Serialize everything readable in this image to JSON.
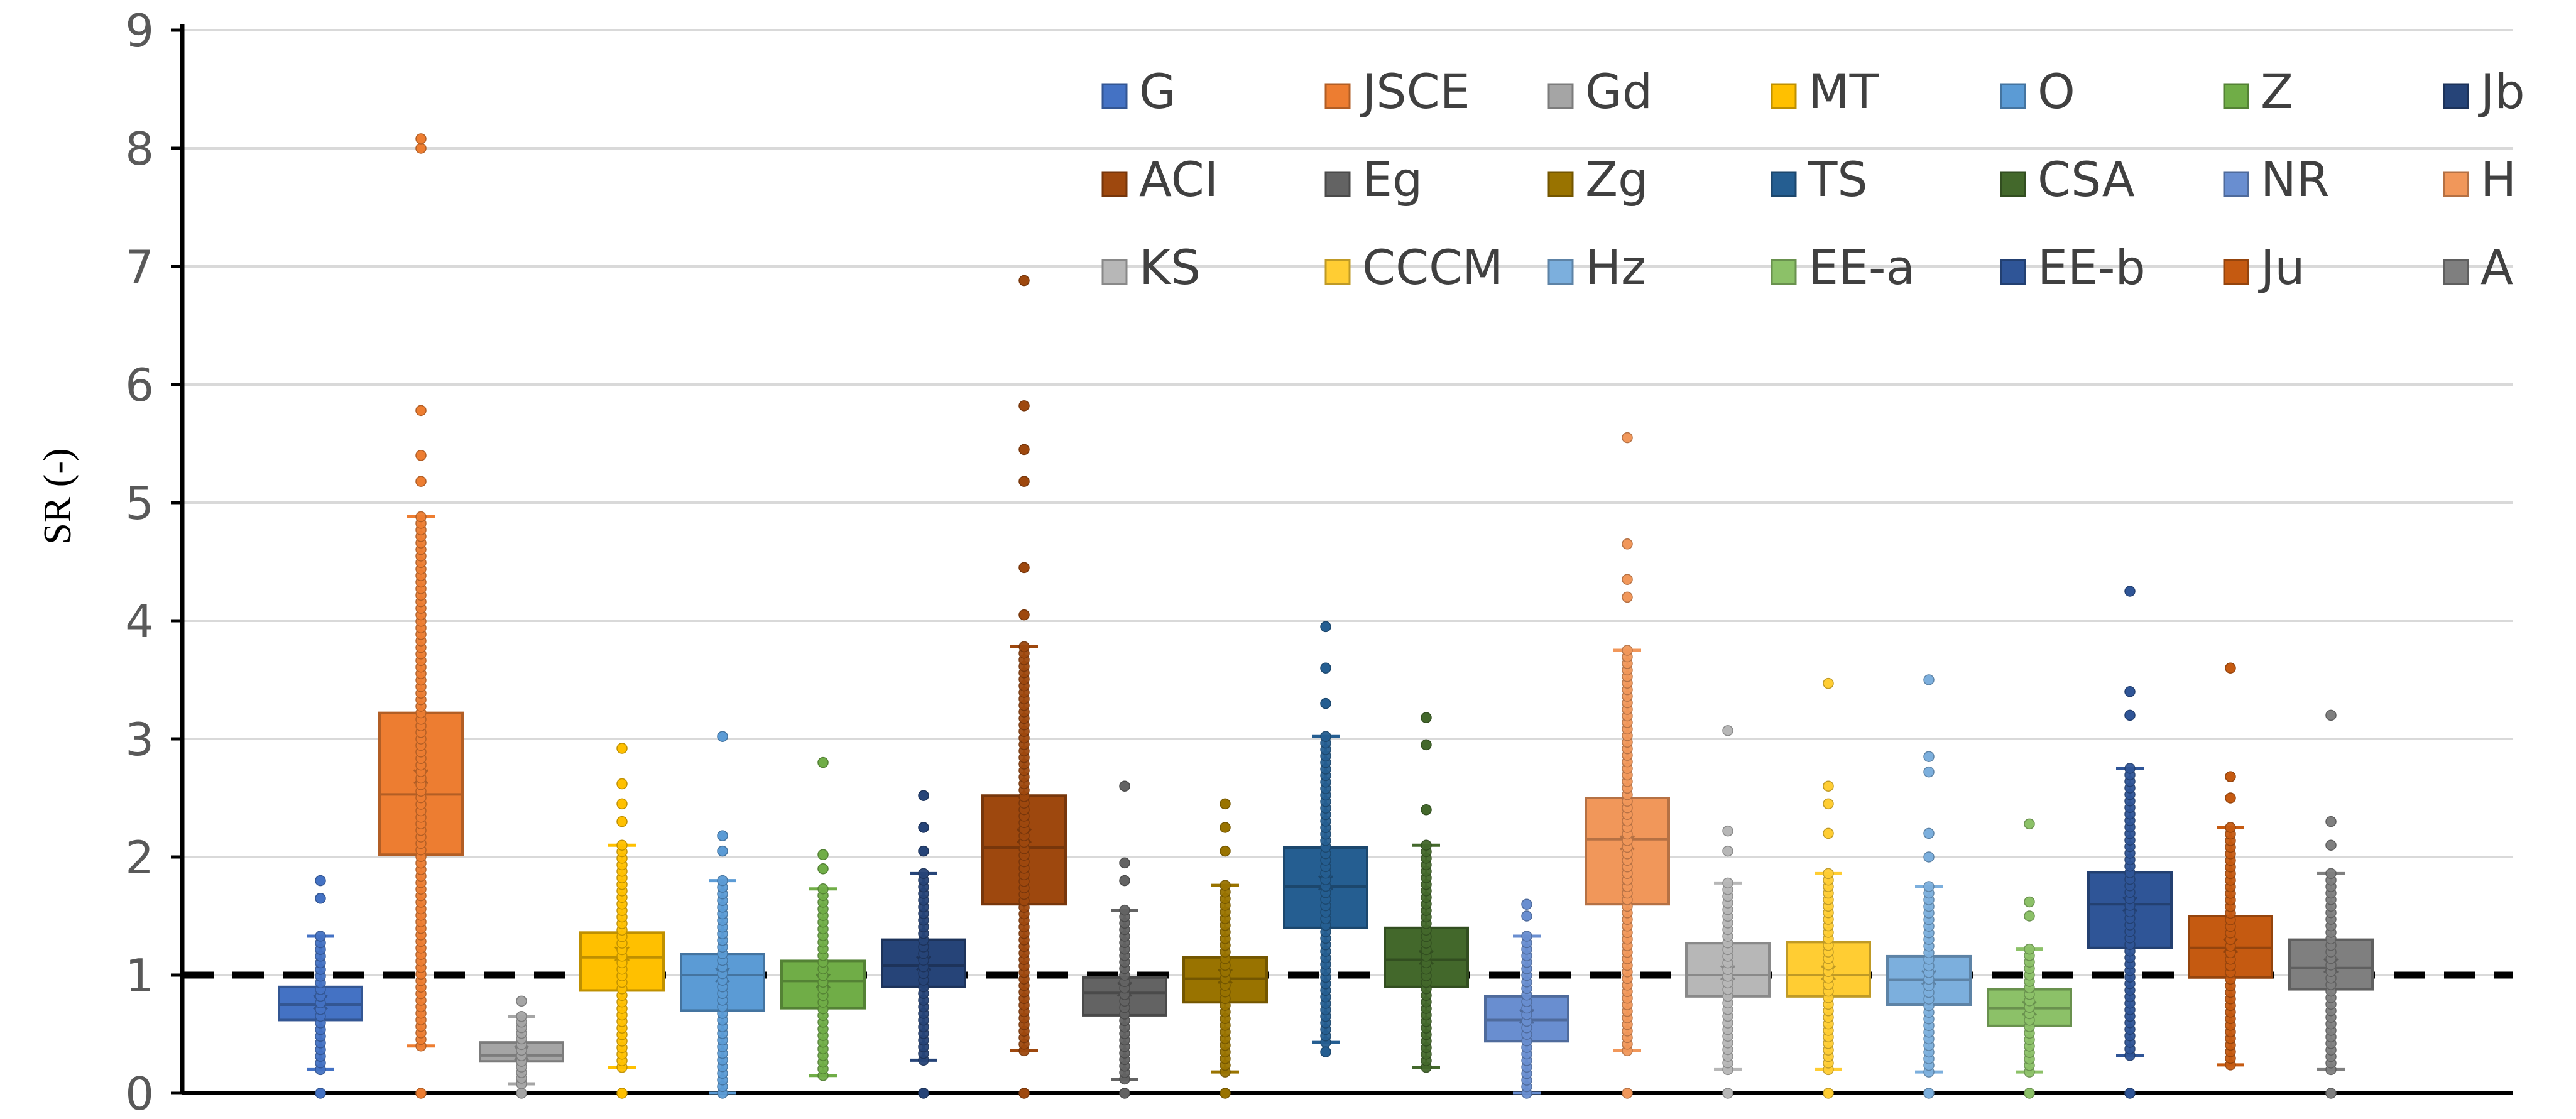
{
  "chart_data": {
    "type": "box",
    "title": "",
    "xlabel": "",
    "ylabel": "SR (-)",
    "ylim": [
      0,
      9
    ],
    "yticks": [
      "0",
      "1",
      "2",
      "3",
      "4",
      "5",
      "6",
      "7",
      "8",
      "9"
    ],
    "grid": true,
    "reference_line": 1,
    "legend_position": "top-right",
    "series": [
      {
        "name": "G",
        "color": "#4472C4",
        "min": 0.2,
        "q1": 0.62,
        "median": 0.75,
        "q3": 0.9,
        "max": 1.33,
        "mean": 0.77,
        "outliers": [
          1.65,
          1.8,
          0.0
        ]
      },
      {
        "name": "JSCE",
        "color": "#ED7D31",
        "min": 0.4,
        "q1": 2.02,
        "median": 2.53,
        "q3": 3.22,
        "max": 4.88,
        "mean": 2.68,
        "outliers": [
          5.18,
          5.4,
          5.78,
          8.0,
          8.08,
          0.0
        ]
      },
      {
        "name": "Gd",
        "color": "#A5A5A5",
        "min": 0.08,
        "q1": 0.27,
        "median": 0.32,
        "q3": 0.43,
        "max": 0.65,
        "mean": 0.34,
        "outliers": [
          0.78,
          0.0
        ]
      },
      {
        "name": "MT",
        "color": "#FFC000",
        "min": 0.22,
        "q1": 0.87,
        "median": 1.15,
        "q3": 1.36,
        "max": 2.1,
        "mean": 1.18,
        "outliers": [
          2.3,
          2.45,
          2.62,
          2.92,
          0.0
        ]
      },
      {
        "name": "O",
        "color": "#5B9BD5",
        "min": 0.0,
        "q1": 0.7,
        "median": 1.0,
        "q3": 1.18,
        "max": 1.8,
        "mean": 1.0,
        "outliers": [
          2.05,
          2.18,
          3.02
        ]
      },
      {
        "name": "Z",
        "color": "#70AD47",
        "min": 0.15,
        "q1": 0.72,
        "median": 0.95,
        "q3": 1.12,
        "max": 1.73,
        "mean": 0.95,
        "outliers": [
          1.9,
          2.02,
          2.8
        ]
      },
      {
        "name": "Jb",
        "color": "#264478",
        "min": 0.28,
        "q1": 0.9,
        "median": 1.08,
        "q3": 1.3,
        "max": 1.86,
        "mean": 1.1,
        "outliers": [
          2.05,
          2.25,
          2.52,
          0.0
        ]
      },
      {
        "name": "ACI",
        "color": "#9E480E",
        "min": 0.36,
        "q1": 1.6,
        "median": 2.08,
        "q3": 2.52,
        "max": 3.78,
        "mean": 2.18,
        "outliers": [
          4.05,
          4.45,
          5.18,
          5.45,
          5.82,
          6.88,
          0.0
        ]
      },
      {
        "name": "Eg",
        "color": "#636363",
        "min": 0.12,
        "q1": 0.66,
        "median": 0.85,
        "q3": 0.98,
        "max": 1.55,
        "mean": 0.88,
        "outliers": [
          1.8,
          1.95,
          2.6,
          0.0
        ]
      },
      {
        "name": "Zg",
        "color": "#997300",
        "min": 0.18,
        "q1": 0.77,
        "median": 0.97,
        "q3": 1.15,
        "max": 1.76,
        "mean": 0.99,
        "outliers": [
          2.05,
          2.25,
          2.45,
          0.0
        ]
      },
      {
        "name": "TS",
        "color": "#255E91",
        "min": 0.43,
        "q1": 1.4,
        "median": 1.75,
        "q3": 2.08,
        "max": 3.02,
        "mean": 1.78,
        "outliers": [
          3.3,
          3.6,
          3.95,
          0.35
        ]
      },
      {
        "name": "CSA",
        "color": "#43682B",
        "min": 0.22,
        "q1": 0.9,
        "median": 1.13,
        "q3": 1.4,
        "max": 2.1,
        "mean": 1.15,
        "outliers": [
          2.4,
          2.95,
          3.18
        ]
      },
      {
        "name": "NR",
        "color": "#698ED0",
        "min": 0.0,
        "q1": 0.44,
        "median": 0.62,
        "q3": 0.82,
        "max": 1.33,
        "mean": 0.65,
        "outliers": [
          1.5,
          1.6
        ]
      },
      {
        "name": "H",
        "color": "#F1975A",
        "min": 0.36,
        "q1": 1.6,
        "median": 2.15,
        "q3": 2.5,
        "max": 3.75,
        "mean": 2.12,
        "outliers": [
          4.2,
          4.35,
          4.65,
          5.55,
          0.0
        ]
      },
      {
        "name": "KS",
        "color": "#B7B7B7",
        "min": 0.2,
        "q1": 0.82,
        "median": 1.0,
        "q3": 1.27,
        "max": 1.78,
        "mean": 1.02,
        "outliers": [
          2.05,
          2.22,
          3.07,
          0.0
        ]
      },
      {
        "name": "CCCM",
        "color": "#FFCD33",
        "min": 0.2,
        "q1": 0.82,
        "median": 1.0,
        "q3": 1.28,
        "max": 1.86,
        "mean": 1.02,
        "outliers": [
          2.2,
          2.45,
          2.6,
          3.47,
          0.0
        ]
      },
      {
        "name": "Hz",
        "color": "#7CAFDD",
        "min": 0.18,
        "q1": 0.75,
        "median": 0.96,
        "q3": 1.16,
        "max": 1.75,
        "mean": 0.98,
        "outliers": [
          2.0,
          2.2,
          2.72,
          2.85,
          3.5,
          0.0
        ]
      },
      {
        "name": "EE-a",
        "color": "#8CC168",
        "min": 0.18,
        "q1": 0.57,
        "median": 0.72,
        "q3": 0.88,
        "max": 1.22,
        "mean": 0.72,
        "outliers": [
          1.5,
          1.62,
          2.28,
          0.0
        ]
      },
      {
        "name": "EE-b",
        "color": "#2F5597",
        "min": 0.32,
        "q1": 1.23,
        "median": 1.6,
        "q3": 1.87,
        "max": 2.75,
        "mean": 1.6,
        "outliers": [
          3.2,
          3.4,
          4.25,
          0.0
        ]
      },
      {
        "name": "Ju",
        "color": "#C55A11",
        "min": 0.24,
        "q1": 0.98,
        "median": 1.23,
        "q3": 1.5,
        "max": 2.25,
        "mean": 1.25,
        "outliers": [
          2.5,
          2.68,
          3.6
        ]
      },
      {
        "name": "A",
        "color": "#7F7F7F",
        "min": 0.2,
        "q1": 0.88,
        "median": 1.06,
        "q3": 1.3,
        "max": 1.86,
        "mean": 1.08,
        "outliers": [
          2.1,
          2.3,
          3.2,
          0.0
        ]
      }
    ]
  }
}
